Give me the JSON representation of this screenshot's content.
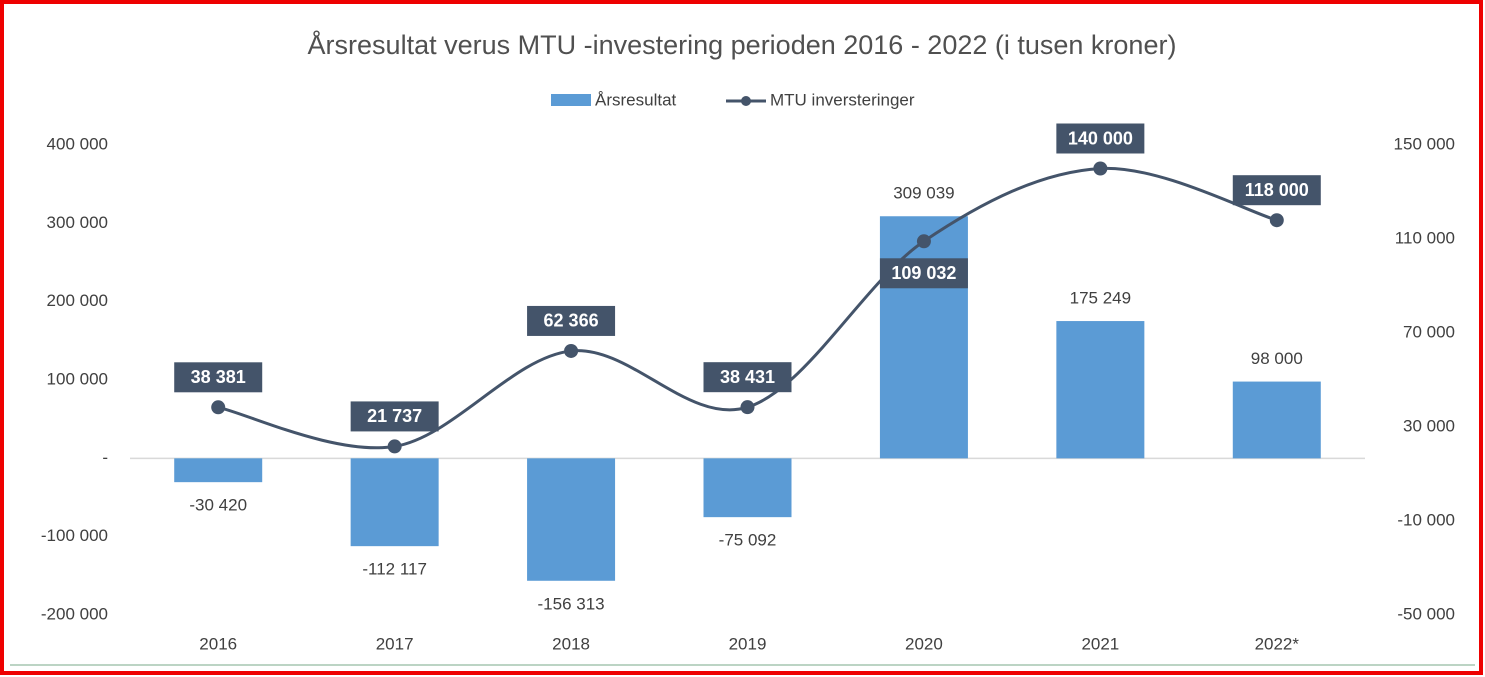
{
  "chart_data": {
    "type": "bar-line",
    "title": "Årsresultat verus MTU -investering perioden 2016  - 2022 (i tusen kroner)",
    "categories": [
      "2016",
      "2017",
      "2018",
      "2019",
      "2020",
      "2021",
      "2022*"
    ],
    "series": [
      {
        "name": "Årsresultat",
        "type": "bar",
        "color": "#5b9bd5",
        "values": [
          -30420,
          -112117,
          -156313,
          -75092,
          309039,
          175249,
          98000
        ],
        "value_labels": [
          "-30 420",
          "-112 117",
          "-156 313",
          "-75 092",
          "309 039",
          "175 249",
          "98 000"
        ]
      },
      {
        "name": "MTU inversteringer",
        "type": "line",
        "axis": "y2",
        "color": "#44546a",
        "values": [
          38381,
          21737,
          62366,
          38431,
          109032,
          140000,
          118000
        ],
        "value_labels": [
          "38 381",
          "21 737",
          "62 366",
          "38 431",
          "109 032",
          "140 000",
          "118 000"
        ]
      }
    ],
    "ylim": [
      -200000,
      400000
    ],
    "yticks": [
      {
        "value": -200000,
        "label": "-200 000"
      },
      {
        "value": -100000,
        "label": "-100 000"
      },
      {
        "value": 0,
        "label": "-"
      },
      {
        "value": 100000,
        "label": "100 000"
      },
      {
        "value": 200000,
        "label": "200 000"
      },
      {
        "value": 300000,
        "label": "300 000"
      },
      {
        "value": 400000,
        "label": "400 000"
      }
    ],
    "y2lim": [
      -50000,
      150000
    ],
    "y2ticks": [
      {
        "value": -50000,
        "label": "-50 000"
      },
      {
        "value": -10000,
        "label": "-10 000"
      },
      {
        "value": 30000,
        "label": "30 000"
      },
      {
        "value": 70000,
        "label": "70 000"
      },
      {
        "value": 110000,
        "label": "110 000"
      },
      {
        "value": 150000,
        "label": "150 000"
      }
    ],
    "legend": "top",
    "grid": false
  }
}
